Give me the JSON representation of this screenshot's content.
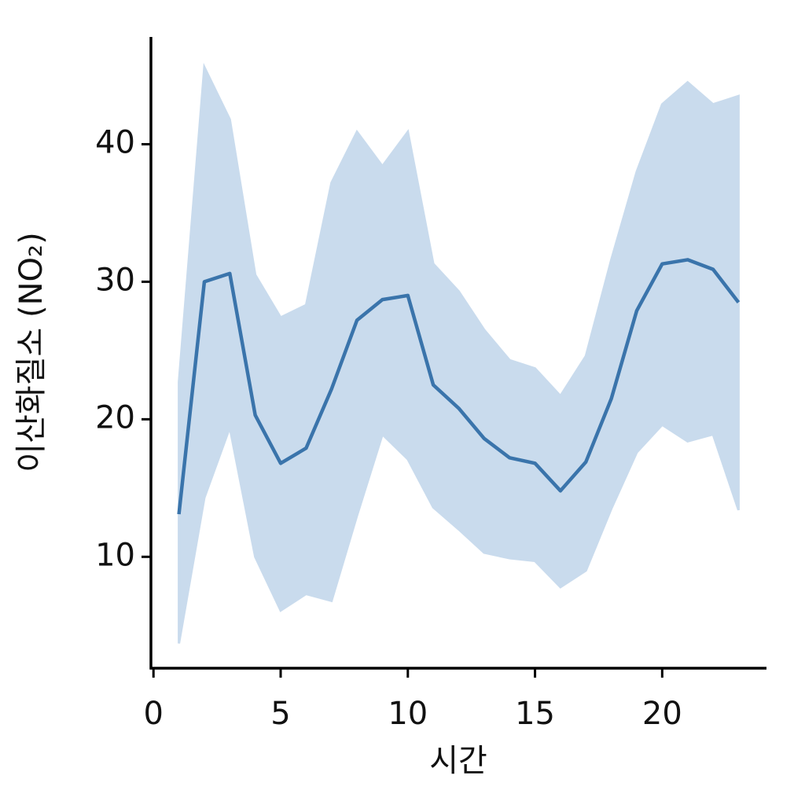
{
  "chart_data": {
    "type": "line",
    "x_label": "시간",
    "y_label": "이산화질소 (NO₂)",
    "x": [
      1,
      2,
      3,
      4,
      5,
      6,
      7,
      8,
      9,
      10,
      11,
      12,
      13,
      14,
      15,
      16,
      17,
      18,
      19,
      20,
      21,
      22,
      23
    ],
    "series": [
      {
        "color": "#3a74ab",
        "band_color": "#c9dbed",
        "values": [
          13.1,
          30.0,
          30.6,
          20.3,
          16.8,
          17.9,
          22.2,
          27.2,
          28.7,
          29.0,
          22.5,
          20.8,
          18.6,
          17.2,
          16.8,
          14.8,
          16.9,
          21.5,
          27.9,
          31.3,
          31.6,
          30.9,
          28.5
        ],
        "upper": [
          22.7,
          45.6,
          41.8,
          30.5,
          27.4,
          28.3,
          37.2,
          40.9,
          38.4,
          40.9,
          31.3,
          29.3,
          26.5,
          24.3,
          23.7,
          21.7,
          24.6,
          31.6,
          38.0,
          42.9,
          44.5,
          42.9,
          43.5
        ],
        "lower": [
          3.7,
          14.3,
          19.4,
          10.0,
          6.1,
          7.3,
          6.8,
          13.0,
          18.9,
          17.1,
          13.6,
          12.0,
          10.3,
          9.9,
          9.7,
          7.8,
          9.0,
          13.5,
          17.6,
          19.6,
          18.4,
          18.9,
          13.4
        ]
      }
    ],
    "xlim": [
      -0.1,
      24.1
    ],
    "xticks": [
      0,
      5,
      10,
      15,
      20
    ],
    "ylim": [
      1.9,
      47.8
    ],
    "yticks": [
      10,
      20,
      30,
      40
    ]
  }
}
